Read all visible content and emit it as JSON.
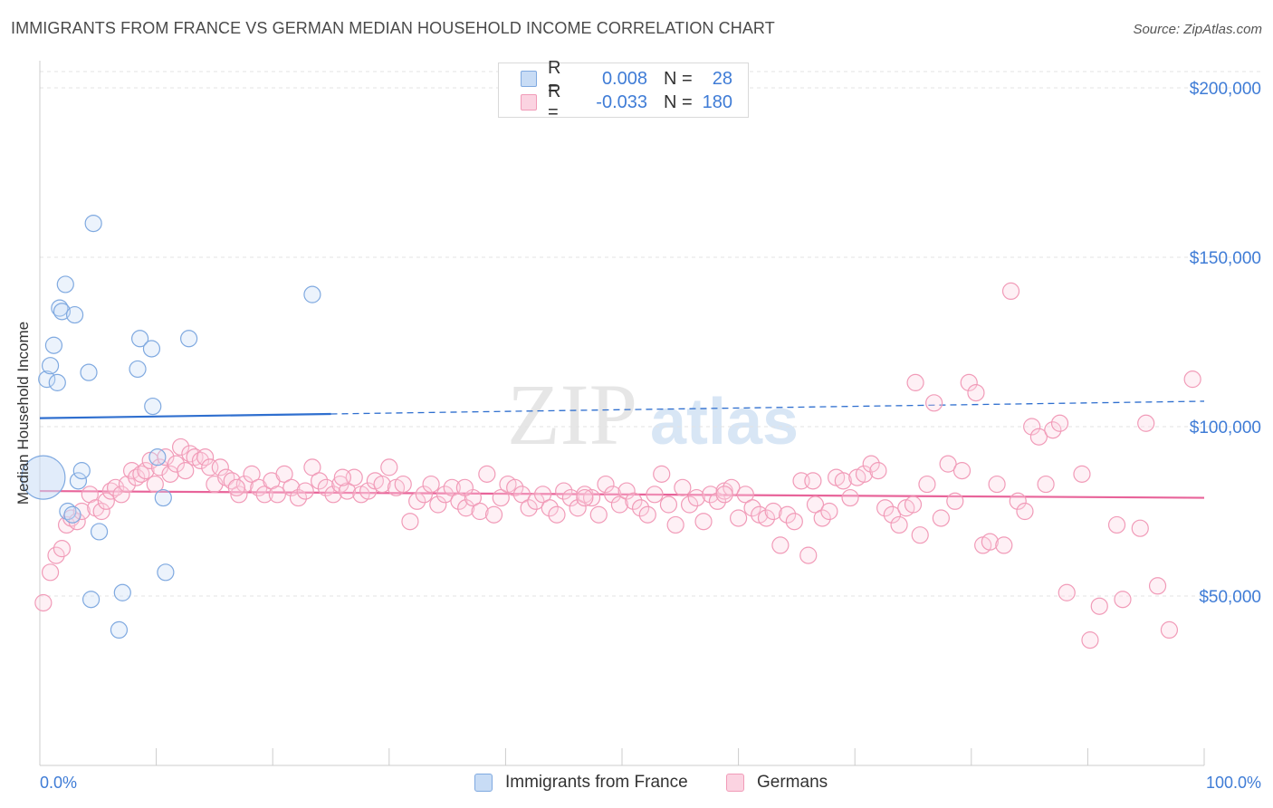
{
  "title": "IMMIGRANTS FROM FRANCE VS GERMAN MEDIAN HOUSEHOLD INCOME CORRELATION CHART",
  "source": "Source: ZipAtlas.com",
  "watermark": {
    "zip": "ZIP",
    "atlas": "atlas"
  },
  "legend_top": {
    "rows": [
      {
        "r_label": "R =",
        "r_value": "0.008",
        "n_label": "N =",
        "n_value": "28",
        "color": "#7fa9e0"
      },
      {
        "r_label": "R =",
        "r_value": "-0.033",
        "n_label": "N =",
        "n_value": "180",
        "color": "#f19bb8"
      }
    ]
  },
  "legend_bottom": [
    {
      "label": "Immigrants from France",
      "color": "#7fa9e0"
    },
    {
      "label": "Germans",
      "color": "#f19bb8"
    }
  ],
  "chart_data": {
    "type": "scatter",
    "title": "IMMIGRANTS FROM FRANCE VS GERMAN MEDIAN HOUSEHOLD INCOME CORRELATION CHART",
    "xlabel": "",
    "ylabel": "Median Household Income",
    "xlim": [
      0,
      100
    ],
    "ylim": [
      0,
      210000
    ],
    "x_tick_labels": [
      "0.0%",
      "100.0%"
    ],
    "y_ticks": [
      50000,
      100000,
      150000,
      200000
    ],
    "y_tick_labels": [
      "$50,000",
      "$100,000",
      "$150,000",
      "$200,000"
    ],
    "grid": true,
    "series": [
      {
        "name": "Immigrants from France",
        "color": "#7fa9e0",
        "line_color": "#2f6fcf",
        "trend": {
          "x0": 0,
          "y0": 102500,
          "x1": 100,
          "y1": 107500,
          "solid_until": 25
        },
        "points": [
          [
            0.3,
            85000,
            "big"
          ],
          [
            0.6,
            114000
          ],
          [
            0.9,
            118000
          ],
          [
            1.2,
            124000
          ],
          [
            1.5,
            113000
          ],
          [
            1.7,
            135000
          ],
          [
            1.9,
            134000
          ],
          [
            2.2,
            142000
          ],
          [
            2.4,
            75000
          ],
          [
            2.8,
            74000
          ],
          [
            3.0,
            133000
          ],
          [
            3.3,
            84000
          ],
          [
            3.6,
            87000
          ],
          [
            4.2,
            116000
          ],
          [
            4.4,
            49000
          ],
          [
            4.6,
            160000
          ],
          [
            5.1,
            69000
          ],
          [
            6.8,
            40000
          ],
          [
            7.1,
            51000
          ],
          [
            8.4,
            117000
          ],
          [
            8.6,
            126000
          ],
          [
            9.6,
            123000
          ],
          [
            9.7,
            106000
          ],
          [
            10.1,
            91000
          ],
          [
            10.6,
            79000
          ],
          [
            10.8,
            57000
          ],
          [
            12.8,
            126000
          ],
          [
            23.4,
            139000
          ]
        ]
      },
      {
        "name": "Germans",
        "color": "#f19bb8",
        "line_color": "#e8649a",
        "trend": {
          "x0": 0,
          "y0": 81000,
          "x1": 100,
          "y1": 79000
        },
        "points": [
          [
            0.3,
            48000
          ],
          [
            0.9,
            57000
          ],
          [
            1.4,
            62000
          ],
          [
            1.9,
            64000
          ],
          [
            2.3,
            71000
          ],
          [
            2.7,
            73000
          ],
          [
            3.2,
            72000
          ],
          [
            3.6,
            75000
          ],
          [
            4.3,
            80000
          ],
          [
            4.8,
            76000
          ],
          [
            5.3,
            75000
          ],
          [
            5.7,
            78000
          ],
          [
            6.1,
            81000
          ],
          [
            6.5,
            82000
          ],
          [
            7.0,
            80000
          ],
          [
            7.5,
            83000
          ],
          [
            7.9,
            87000
          ],
          [
            8.3,
            85000
          ],
          [
            8.7,
            86000
          ],
          [
            9.1,
            87000
          ],
          [
            9.5,
            90000
          ],
          [
            9.9,
            83000
          ],
          [
            10.3,
            88000
          ],
          [
            10.8,
            91000
          ],
          [
            11.2,
            86000
          ],
          [
            11.7,
            89000
          ],
          [
            12.1,
            94000
          ],
          [
            12.5,
            87000
          ],
          [
            12.9,
            92000
          ],
          [
            13.3,
            91000
          ],
          [
            13.8,
            90000
          ],
          [
            14.2,
            91000
          ],
          [
            14.6,
            88000
          ],
          [
            15.0,
            83000
          ],
          [
            15.5,
            88000
          ],
          [
            16.0,
            85000
          ],
          [
            16.5,
            84000
          ],
          [
            17.1,
            80000
          ],
          [
            17.6,
            83000
          ],
          [
            18.2,
            86000
          ],
          [
            18.8,
            82000
          ],
          [
            19.3,
            80000
          ],
          [
            19.9,
            84000
          ],
          [
            20.4,
            80000
          ],
          [
            21.0,
            86000
          ],
          [
            21.6,
            82000
          ],
          [
            22.2,
            79000
          ],
          [
            22.8,
            81000
          ],
          [
            23.4,
            88000
          ],
          [
            24.0,
            84000
          ],
          [
            24.6,
            82000
          ],
          [
            25.2,
            80000
          ],
          [
            25.8,
            83000
          ],
          [
            26.4,
            81000
          ],
          [
            27.0,
            85000
          ],
          [
            27.6,
            80000
          ],
          [
            28.2,
            81000
          ],
          [
            28.8,
            84000
          ],
          [
            29.4,
            83000
          ],
          [
            30.0,
            88000
          ],
          [
            30.6,
            82000
          ],
          [
            31.2,
            83000
          ],
          [
            31.8,
            72000
          ],
          [
            32.4,
            78000
          ],
          [
            33.0,
            80000
          ],
          [
            33.6,
            83000
          ],
          [
            34.2,
            77000
          ],
          [
            34.8,
            80000
          ],
          [
            35.4,
            82000
          ],
          [
            36.0,
            78000
          ],
          [
            36.6,
            76000
          ],
          [
            37.2,
            79000
          ],
          [
            37.8,
            75000
          ],
          [
            38.4,
            86000
          ],
          [
            39.0,
            74000
          ],
          [
            39.6,
            79000
          ],
          [
            40.2,
            83000
          ],
          [
            40.8,
            82000
          ],
          [
            41.4,
            80000
          ],
          [
            42.0,
            76000
          ],
          [
            42.6,
            78000
          ],
          [
            43.2,
            80000
          ],
          [
            43.8,
            76000
          ],
          [
            44.4,
            74000
          ],
          [
            45.0,
            81000
          ],
          [
            45.6,
            79000
          ],
          [
            46.2,
            76000
          ],
          [
            46.8,
            80000
          ],
          [
            47.4,
            79000
          ],
          [
            48.0,
            74000
          ],
          [
            48.6,
            83000
          ],
          [
            49.2,
            80000
          ],
          [
            49.8,
            77000
          ],
          [
            50.4,
            81000
          ],
          [
            51.0,
            78000
          ],
          [
            51.6,
            76000
          ],
          [
            52.2,
            74000
          ],
          [
            52.8,
            80000
          ],
          [
            53.4,
            86000
          ],
          [
            54.0,
            77000
          ],
          [
            54.6,
            71000
          ],
          [
            55.2,
            82000
          ],
          [
            55.8,
            77000
          ],
          [
            56.4,
            79000
          ],
          [
            57.0,
            72000
          ],
          [
            57.6,
            80000
          ],
          [
            58.2,
            78000
          ],
          [
            58.8,
            81000
          ],
          [
            59.4,
            82000
          ],
          [
            60.0,
            73000
          ],
          [
            60.6,
            80000
          ],
          [
            61.2,
            76000
          ],
          [
            61.8,
            74000
          ],
          [
            62.4,
            73000
          ],
          [
            63.0,
            75000
          ],
          [
            63.6,
            65000
          ],
          [
            64.2,
            74000
          ],
          [
            64.8,
            72000
          ],
          [
            65.4,
            84000
          ],
          [
            66.0,
            62000
          ],
          [
            66.6,
            77000
          ],
          [
            67.2,
            73000
          ],
          [
            67.8,
            75000
          ],
          [
            68.4,
            85000
          ],
          [
            69.0,
            84000
          ],
          [
            69.6,
            79000
          ],
          [
            70.2,
            85000
          ],
          [
            70.8,
            86000
          ],
          [
            71.4,
            89000
          ],
          [
            72.0,
            87000
          ],
          [
            72.6,
            76000
          ],
          [
            73.2,
            74000
          ],
          [
            73.8,
            71000
          ],
          [
            74.4,
            76000
          ],
          [
            75.0,
            77000
          ],
          [
            75.6,
            68000
          ],
          [
            76.2,
            83000
          ],
          [
            76.8,
            107000
          ],
          [
            77.4,
            73000
          ],
          [
            78.0,
            89000
          ],
          [
            78.6,
            78000
          ],
          [
            79.2,
            87000
          ],
          [
            79.8,
            113000
          ],
          [
            80.4,
            110000
          ],
          [
            81.0,
            65000
          ],
          [
            81.6,
            66000
          ],
          [
            82.2,
            83000
          ],
          [
            82.8,
            65000
          ],
          [
            83.4,
            140000
          ],
          [
            84.0,
            78000
          ],
          [
            84.6,
            75000
          ],
          [
            85.2,
            100000
          ],
          [
            85.8,
            97000
          ],
          [
            86.4,
            83000
          ],
          [
            87.0,
            99000
          ],
          [
            87.6,
            101000
          ],
          [
            88.2,
            51000
          ],
          [
            89.5,
            86000
          ],
          [
            90.2,
            37000
          ],
          [
            91.0,
            47000
          ],
          [
            92.5,
            71000
          ],
          [
            93.0,
            49000
          ],
          [
            94.5,
            70000
          ],
          [
            95.0,
            101000
          ],
          [
            96.0,
            53000
          ],
          [
            97.0,
            40000
          ],
          [
            99.0,
            114000
          ],
          [
            75.2,
            113000
          ],
          [
            46.8,
            79000
          ],
          [
            58.8,
            80000
          ],
          [
            66.4,
            84000
          ],
          [
            16.9,
            82000
          ],
          [
            26.0,
            85000
          ],
          [
            36.5,
            82000
          ]
        ]
      }
    ]
  }
}
